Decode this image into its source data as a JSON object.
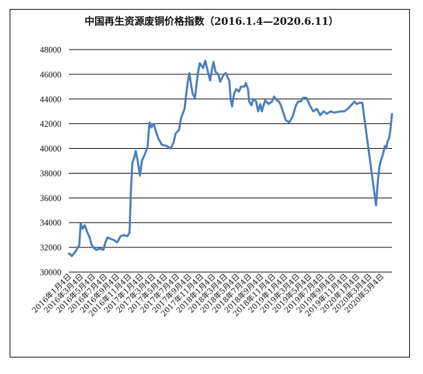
{
  "chart_data": {
    "type": "line",
    "title": "中国再生资源废铜价格指数（2016.1.4—2020.6.11）",
    "xlabel": "",
    "ylabel": "",
    "ylim": [
      30000,
      48000
    ],
    "xlim": [
      "2016-01-04",
      "2020-06-11"
    ],
    "grid": "horizontal",
    "legend": "none",
    "line_color": "#4A7EBB",
    "y_ticks": [
      "30000",
      "32000",
      "34000",
      "36000",
      "38000",
      "40000",
      "42000",
      "44000",
      "46000",
      "48000"
    ],
    "x_tick_labels": [
      "2016年1月4日",
      "2016年3月4日",
      "2016年5月4日",
      "2016年7月4日",
      "2016年9月4日",
      "2016年11月4日",
      "2017年1月4日",
      "2017年3月4日",
      "2017年5月4日",
      "2017年7月4日",
      "2017年9月4日",
      "2017年11月4日",
      "2018年1月4日",
      "2018年3月4日",
      "2018年5月4日",
      "2018年7月4日",
      "2018年9月4日",
      "2018年11月4日",
      "2019年1月4日",
      "2019年3月4日",
      "2019年5月4日",
      "2019年7月4日",
      "2019年9月4日",
      "2019年11月4日",
      "2020年1月4日",
      "2020年3月4日",
      "2020年5月4日"
    ],
    "series": [
      {
        "name": "中国再生资源废铜价格指数",
        "x": [
          "2016-01-04",
          "2016-01-07",
          "2016-01-18",
          "2016-02-08",
          "2016-02-25",
          "2016-03-03",
          "2016-03-13",
          "2016-03-23",
          "2016-04-06",
          "2016-04-17",
          "2016-04-27",
          "2016-05-11",
          "2016-05-21",
          "2016-06-07",
          "2016-06-25",
          "2016-07-05",
          "2016-07-15",
          "2016-07-29",
          "2016-08-15",
          "2016-09-02",
          "2016-09-19",
          "2016-10-06",
          "2016-10-23",
          "2016-11-03",
          "2016-11-10",
          "2016-11-17",
          "2016-11-27",
          "2016-12-04",
          "2016-12-14",
          "2016-12-25",
          "2017-01-04",
          "2017-01-18",
          "2017-02-01",
          "2017-02-11",
          "2017-02-21",
          "2017-03-04",
          "2017-03-17",
          "2017-03-28",
          "2017-04-14",
          "2017-05-08",
          "2017-05-29",
          "2017-06-12",
          "2017-06-22",
          "2017-07-09",
          "2017-07-20",
          "2017-08-06",
          "2017-08-13",
          "2017-08-23",
          "2017-08-30",
          "2017-09-09",
          "2017-09-16",
          "2017-09-27",
          "2017-10-11",
          "2017-10-21",
          "2017-11-07",
          "2017-11-18",
          "2017-12-01",
          "2017-12-12",
          "2017-12-22",
          "2017-12-29",
          "2018-01-08",
          "2018-01-22",
          "2018-02-01",
          "2018-02-19",
          "2018-03-01",
          "2018-03-08",
          "2018-03-18",
          "2018-03-25",
          "2018-04-01",
          "2018-04-11",
          "2018-04-22",
          "2018-05-06",
          "2018-05-16",
          "2018-06-02",
          "2018-06-09",
          "2018-06-20",
          "2018-06-26",
          "2018-07-07",
          "2018-07-17",
          "2018-07-31",
          "2018-08-10",
          "2018-08-21",
          "2018-08-28",
          "2018-09-14",
          "2018-10-01",
          "2018-10-18",
          "2018-10-29",
          "2018-11-11",
          "2018-11-22",
          "2018-12-02",
          "2018-12-16",
          "2018-12-26",
          "2019-01-13",
          "2019-01-30",
          "2019-02-16",
          "2019-02-27",
          "2019-03-12",
          "2019-03-23",
          "2019-04-09",
          "2019-04-26",
          "2019-05-13",
          "2019-05-31",
          "2019-06-17",
          "2019-07-04",
          "2019-07-21",
          "2019-08-08",
          "2019-08-25",
          "2019-09-29",
          "2019-10-16",
          "2019-11-02",
          "2019-11-19",
          "2019-12-06",
          "2019-12-17",
          "2019-12-31",
          "2020-01-14",
          "2020-03-23",
          "2020-04-02",
          "2020-04-09",
          "2020-04-16",
          "2020-04-26",
          "2020-05-06",
          "2020-05-13",
          "2020-05-20",
          "2020-05-27",
          "2020-06-03",
          "2020-06-11"
        ],
        "values": [
          31500,
          31500,
          31300,
          31700,
          32200,
          33900,
          33500,
          33800,
          33200,
          32800,
          32200,
          31900,
          31800,
          31900,
          31800,
          32400,
          32800,
          32700,
          32600,
          32400,
          32900,
          33000,
          32900,
          33200,
          36500,
          38800,
          39300,
          39800,
          39000,
          37800,
          39000,
          39500,
          40100,
          42100,
          41700,
          42000,
          41300,
          40800,
          40300,
          40200,
          40000,
          40500,
          41200,
          41500,
          42500,
          43200,
          44200,
          45500,
          46100,
          45000,
          44400,
          44100,
          46000,
          46900,
          46500,
          47100,
          46200,
          45500,
          46500,
          47000,
          46200,
          46000,
          45400,
          46000,
          46100,
          45800,
          45500,
          44000,
          43400,
          44400,
          44800,
          44600,
          45000,
          45000,
          45300,
          44800,
          43800,
          43500,
          44000,
          43800,
          43000,
          43600,
          43000,
          43900,
          43600,
          43800,
          44200,
          43900,
          43800,
          43500,
          42800,
          42300,
          42100,
          42600,
          43500,
          43800,
          43800,
          44100,
          44100,
          43500,
          43000,
          43200,
          42700,
          43000,
          42800,
          43000,
          42900,
          43000,
          43000,
          43200,
          43500,
          43800,
          43600,
          43700,
          43700,
          35400,
          37500,
          38500,
          39000,
          39500,
          40200,
          40000,
          40600,
          40800,
          41500,
          42800
        ]
      }
    ]
  }
}
